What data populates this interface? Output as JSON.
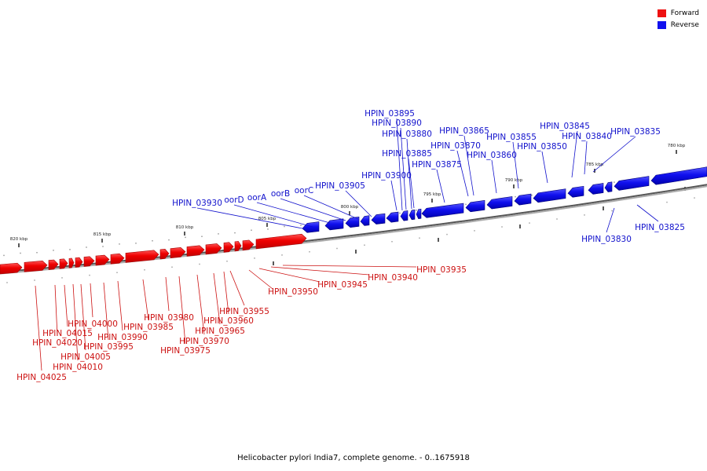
{
  "legend": {
    "forward": {
      "label": "Forward",
      "color": "#ee1111"
    },
    "reverse": {
      "label": "Reverse",
      "color": "#1111ee"
    }
  },
  "caption": "Helicobacter pylori India7, complete genome. - 0..1675918",
  "ruler_labels": [
    "820 kbp",
    "815 kbp",
    "810 kbp",
    "805 kbp",
    "800 kbp",
    "795 kbp",
    "790 kbp",
    "785 kbp",
    "780 kbp"
  ],
  "reverse_genes": [
    "HPIN_03895",
    "HPIN_03890",
    "HPIN_03880",
    "HPIN_03885",
    "HPIN_03900",
    "HPIN_03865",
    "HPIN_03870",
    "HPIN_03875",
    "HPIN_03860",
    "HPIN_03855",
    "HPIN_03850",
    "HPIN_03845",
    "HPIN_03840",
    "HPIN_03835",
    "HPIN_03905",
    "oorC",
    "oorB",
    "oorA",
    "oorD",
    "HPIN_03930",
    "HPIN_03830",
    "HPIN_03825"
  ],
  "forward_genes": [
    "HPIN_03935",
    "HPIN_03940",
    "HPIN_03945",
    "HPIN_03950",
    "HPIN_03955",
    "HPIN_03960",
    "HPIN_03965",
    "HPIN_03970",
    "HPIN_03975",
    "HPIN_03980",
    "HPIN_03985",
    "HPIN_03990",
    "HPIN_03995",
    "HPIN_04000",
    "HPIN_04005",
    "HPIN_04010",
    "HPIN_04015",
    "HPIN_04020",
    "HPIN_04025"
  ]
}
